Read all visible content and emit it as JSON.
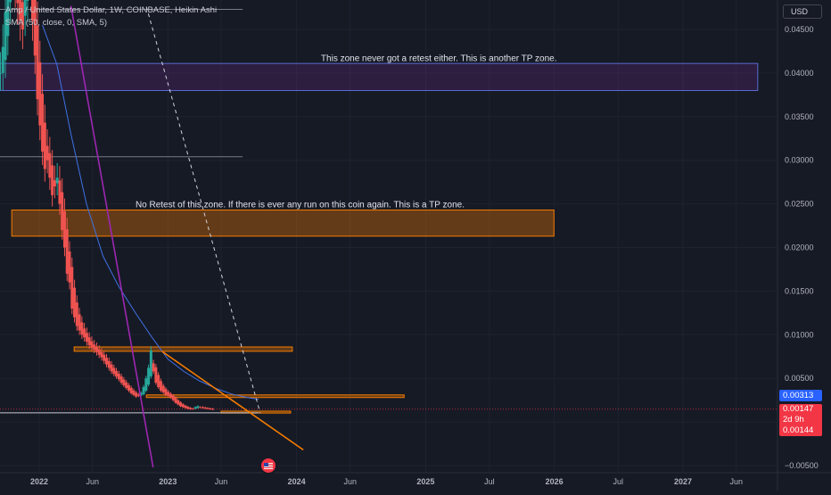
{
  "legend": {
    "symbol": "Amp / United States Dollar, 1W, COINBASE, Heikin Ashi",
    "indicator": "SMA (50, close, 0, SMA, 5)"
  },
  "currency_button": "USD",
  "price_tags": {
    "last_price": "0.00313",
    "current_price": "0.00147",
    "countdown": "2d 9h",
    "close_price": "0.00144"
  },
  "colors": {
    "background": "#161a25",
    "up": "#26a69a",
    "down": "#ef5350",
    "sma": "#3f72e6",
    "trend_purple": "#9c27b0",
    "trend_orange": "#f57c00",
    "zone_orange": "#f57c00",
    "zone_purple": "#7e57c2"
  },
  "chart_data": {
    "type": "candlestick",
    "title": "Amp / United States Dollar, 1W, COINBASE, Heikin Ashi",
    "y_ticks": [
      0.045,
      0.04,
      0.035,
      0.03,
      0.025,
      0.02,
      0.015,
      0.01,
      0.005,
      0.0,
      -0.005
    ],
    "y_tick_labels": [
      "0.04500",
      "0.04000",
      "0.03500",
      "0.03000",
      "0.02500",
      "0.02000",
      "0.01500",
      "0.01000",
      "0.00500",
      "",
      "−0.00500"
    ],
    "ylim": [
      -0.0052,
      0.0476
    ],
    "x_ticks": [
      {
        "label": "2022",
        "date": "2022-01-01",
        "bold": true
      },
      {
        "label": "Jun",
        "date": "2022-06-01",
        "bold": false
      },
      {
        "label": "2023",
        "date": "2023-01-01",
        "bold": true
      },
      {
        "label": "Jun",
        "date": "2023-06-01",
        "bold": false
      },
      {
        "label": "2024",
        "date": "2024-01-01",
        "bold": true
      },
      {
        "label": "Jun",
        "date": "2024-06-01",
        "bold": false
      },
      {
        "label": "2025",
        "date": "2025-01-01",
        "bold": true
      },
      {
        "label": "Jul",
        "date": "2025-07-01",
        "bold": false
      },
      {
        "label": "2026",
        "date": "2026-01-01",
        "bold": true
      },
      {
        "label": "Jul",
        "date": "2026-07-01",
        "bold": false
      },
      {
        "label": "2027",
        "date": "2027-01-01",
        "bold": true
      },
      {
        "label": "Jun",
        "date": "2027-06-01",
        "bold": false
      }
    ],
    "xlim": [
      "2021-09-01",
      "2027-09-01"
    ],
    "zones": [
      {
        "name": "purple-tp-zone",
        "from": "2021-09-01",
        "to": "2027-08-01",
        "y_low": 0.038,
        "y_high": 0.0411,
        "color": "#7e57c2"
      },
      {
        "name": "orange-tp-zone",
        "from": "2021-10-15",
        "to": "2025-12-31",
        "y_low": 0.0213,
        "y_high": 0.0243,
        "color": "#f57c00"
      },
      {
        "name": "resistance-zone-1",
        "from": "2022-04-10",
        "to": "2023-12-20",
        "y_low": 0.0081,
        "y_high": 0.0086,
        "color": "#f57c00"
      },
      {
        "name": "resistance-zone-2",
        "from": "2022-11-01",
        "to": "2024-11-01",
        "y_low": 0.0028,
        "y_high": 0.0031,
        "color": "#f57c00"
      },
      {
        "name": "support-zone",
        "from": "2023-06-01",
        "to": "2023-12-15",
        "y_low": 0.00102,
        "y_high": 0.00124,
        "color": "#f57c00"
      }
    ],
    "h_lines": [
      {
        "from": "2021-09-01",
        "to": "2023-08-01",
        "y": 0.0473,
        "color": "#787b86"
      },
      {
        "from": "2021-09-01",
        "to": "2023-08-01",
        "y": 0.0304,
        "color": "#787b86"
      },
      {
        "from": "2021-09-01",
        "to": "2023-09-15",
        "y": 0.00105,
        "color": "#c8cad2"
      }
    ],
    "trend_lines": [
      {
        "name": "purple-trendline",
        "from": [
          "2022-04-01",
          0.0477
        ],
        "to": [
          "2022-11-20",
          -0.0052
        ],
        "color": "#9c27b0",
        "dash": false
      },
      {
        "name": "orange-trendline",
        "from": [
          "2022-12-15",
          0.0081
        ],
        "to": [
          "2024-01-20",
          -0.0032
        ],
        "color": "#f57c00",
        "dash": false
      },
      {
        "name": "dashed-trendline",
        "from": [
          "2022-11-01",
          0.0476
        ],
        "to": [
          "2023-09-20",
          0.001
        ],
        "color": "#d1d4dc",
        "dash": true
      }
    ],
    "annotations": [
      {
        "text": "This zone never got a retest either. This is another TP zone.",
        "date": "2024-03-10",
        "y": 0.0417
      },
      {
        "text": "No Retest of this zone. If there is ever any run on this coin again. This is a TP zone.",
        "date": "2022-10-01",
        "y": 0.0249
      }
    ],
    "price_series": {
      "name": "AMP/USD",
      "start_date": "2021-09-13",
      "step_days": 7,
      "closes": [
        0.04,
        0.043,
        0.047,
        0.052,
        0.058,
        0.057,
        0.05,
        0.048,
        0.046,
        0.045,
        0.05,
        0.055,
        0.052,
        0.046,
        0.042,
        0.037,
        0.034,
        0.031,
        0.029,
        0.03,
        0.028,
        0.026,
        0.027,
        0.028,
        0.025,
        0.022,
        0.02,
        0.017,
        0.016,
        0.013,
        0.012,
        0.011,
        0.0105,
        0.01,
        0.0097,
        0.0092,
        0.0088,
        0.0085,
        0.0083,
        0.008,
        0.0077,
        0.0074,
        0.007,
        0.0066,
        0.0062,
        0.0058,
        0.0055,
        0.0052,
        0.0049,
        0.0045,
        0.0042,
        0.0039,
        0.0036,
        0.0033,
        0.0031,
        0.0029,
        0.003,
        0.0033,
        0.004,
        0.005,
        0.0062,
        0.0082,
        0.0058,
        0.0045,
        0.004,
        0.0036,
        0.0034,
        0.0031,
        0.003,
        0.0028,
        0.0025,
        0.0022,
        0.002,
        0.0018,
        0.0017,
        0.0016,
        0.0015,
        0.00145,
        0.0015,
        0.0017,
        0.0018,
        0.0017,
        0.0016,
        0.00155,
        0.0015,
        0.00147,
        0.00144
      ]
    },
    "sma_series": {
      "name": "SMA (50, close, 0, SMA, 5)",
      "points": [
        [
          "2022-01-10",
          0.0455
        ],
        [
          "2022-02-20",
          0.041
        ],
        [
          "2022-04-01",
          0.033
        ],
        [
          "2022-05-15",
          0.025
        ],
        [
          "2022-07-01",
          0.019
        ],
        [
          "2022-08-15",
          0.0155
        ],
        [
          "2022-10-01",
          0.0125
        ],
        [
          "2022-11-15",
          0.0098
        ],
        [
          "2023-01-01",
          0.0072
        ],
        [
          "2023-02-15",
          0.0058
        ],
        [
          "2023-04-01",
          0.0047
        ],
        [
          "2023-05-20",
          0.0038
        ],
        [
          "2023-07-01",
          0.0032
        ],
        [
          "2023-08-15",
          0.0028
        ],
        [
          "2023-09-15",
          0.0026
        ]
      ]
    }
  }
}
